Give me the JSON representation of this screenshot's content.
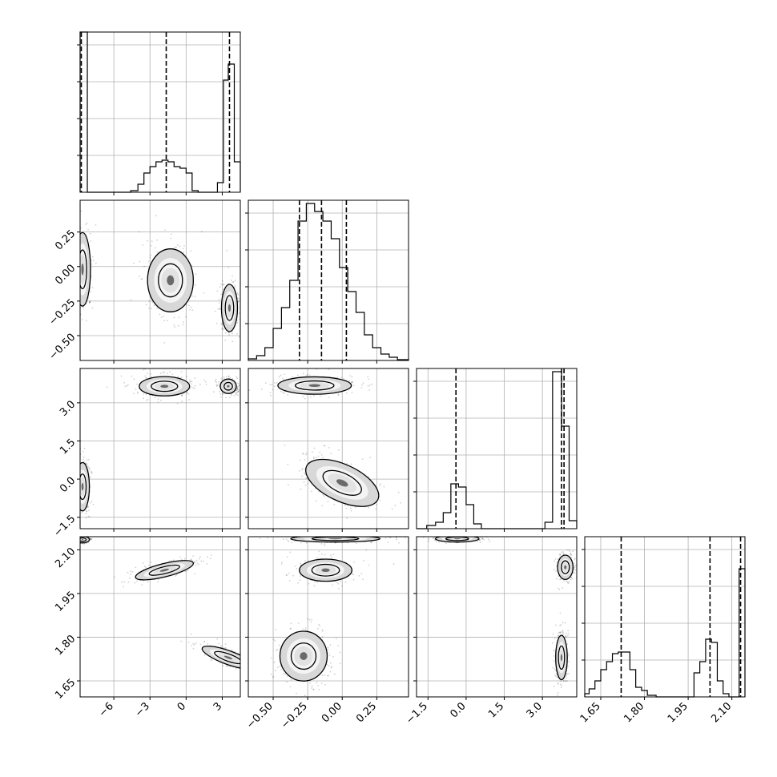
{
  "chart_data": {
    "type": "corner",
    "title": "",
    "parameters": [
      {
        "range": [
          -8.8,
          4.5
        ],
        "ticks": [
          -6,
          -3,
          0,
          3
        ],
        "tick_labels": [
          "−6",
          "−3",
          "0",
          "3"
        ]
      },
      {
        "range": [
          -0.68,
          0.48
        ],
        "ticks": [
          -0.5,
          -0.25,
          0.0,
          0.25
        ],
        "tick_labels": [
          "−0.50",
          "−0.25",
          "0.00",
          "0.25"
        ]
      },
      {
        "range": [
          -1.95,
          4.35
        ],
        "ticks": [
          -1.5,
          0.0,
          1.5,
          3.0
        ],
        "tick_labels": [
          "−1.5",
          "0.0",
          "1.5",
          "3.0"
        ]
      },
      {
        "range": [
          1.595,
          2.145
        ],
        "ticks": [
          1.65,
          1.8,
          1.95,
          2.1
        ],
        "tick_labels": [
          "1.65",
          "1.80",
          "1.95",
          "2.10"
        ]
      }
    ],
    "histograms": [
      {
        "param": 0,
        "bins": [
          [
            -8.8,
            -8.2,
            1.0
          ],
          [
            -8.2,
            -4.6,
            0.0
          ],
          [
            -4.6,
            -4.0,
            0.01
          ],
          [
            -4.0,
            -3.5,
            0.05
          ],
          [
            -3.5,
            -3.0,
            0.12
          ],
          [
            -3.0,
            -2.5,
            0.16
          ],
          [
            -2.5,
            -2.0,
            0.19
          ],
          [
            -2.0,
            -1.5,
            0.2
          ],
          [
            -1.5,
            -1.0,
            0.19
          ],
          [
            -1.0,
            -0.5,
            0.16
          ],
          [
            -0.5,
            0.0,
            0.15
          ],
          [
            0.0,
            0.5,
            0.12
          ],
          [
            0.5,
            1.0,
            0.01
          ],
          [
            1.0,
            2.6,
            0.0
          ],
          [
            2.6,
            3.1,
            0.06
          ],
          [
            3.1,
            3.5,
            0.7
          ],
          [
            3.5,
            4.0,
            0.8
          ],
          [
            4.0,
            4.5,
            0.19
          ]
        ],
        "quantiles": [
          -8.7,
          -1.65,
          3.6
        ]
      },
      {
        "param": 1,
        "bins": [
          [
            -0.68,
            -0.62,
            0.01
          ],
          [
            -0.62,
            -0.56,
            0.03
          ],
          [
            -0.56,
            -0.5,
            0.08
          ],
          [
            -0.5,
            -0.44,
            0.2
          ],
          [
            -0.44,
            -0.38,
            0.33
          ],
          [
            -0.38,
            -0.32,
            0.5
          ],
          [
            -0.32,
            -0.26,
            0.87
          ],
          [
            -0.26,
            -0.2,
            0.98
          ],
          [
            -0.2,
            -0.14,
            0.93
          ],
          [
            -0.14,
            -0.08,
            0.87
          ],
          [
            -0.08,
            -0.02,
            0.76
          ],
          [
            -0.02,
            0.04,
            0.58
          ],
          [
            0.04,
            0.1,
            0.43
          ],
          [
            0.1,
            0.16,
            0.3
          ],
          [
            0.16,
            0.22,
            0.16
          ],
          [
            0.22,
            0.28,
            0.08
          ],
          [
            0.28,
            0.34,
            0.04
          ],
          [
            0.34,
            0.4,
            0.02
          ],
          [
            0.4,
            0.48,
            0.005
          ]
        ],
        "quantiles": [
          -0.31,
          -0.15,
          0.03
        ]
      },
      {
        "param": 2,
        "bins": [
          [
            -1.95,
            -1.55,
            0.0
          ],
          [
            -1.55,
            -1.2,
            0.02
          ],
          [
            -1.2,
            -0.9,
            0.04
          ],
          [
            -0.9,
            -0.6,
            0.1
          ],
          [
            -0.6,
            -0.3,
            0.28
          ],
          [
            -0.3,
            0.0,
            0.26
          ],
          [
            0.0,
            0.3,
            0.15
          ],
          [
            0.3,
            0.6,
            0.03
          ],
          [
            0.6,
            3.1,
            0.0
          ],
          [
            3.1,
            3.4,
            0.04
          ],
          [
            3.4,
            3.75,
            0.98
          ],
          [
            3.75,
            4.05,
            0.64
          ],
          [
            4.05,
            4.35,
            0.05
          ]
        ],
        "quantiles": [
          -0.4,
          3.75,
          3.85
        ]
      },
      {
        "param": 3,
        "bins": [
          [
            1.595,
            1.61,
            0.02
          ],
          [
            1.61,
            1.63,
            0.05
          ],
          [
            1.63,
            1.65,
            0.1
          ],
          [
            1.65,
            1.67,
            0.17
          ],
          [
            1.67,
            1.69,
            0.22
          ],
          [
            1.69,
            1.71,
            0.27
          ],
          [
            1.71,
            1.73,
            0.28
          ],
          [
            1.73,
            1.75,
            0.28
          ],
          [
            1.75,
            1.77,
            0.17
          ],
          [
            1.77,
            1.79,
            0.06
          ],
          [
            1.79,
            1.81,
            0.04
          ],
          [
            1.81,
            1.84,
            0.01
          ],
          [
            1.84,
            1.97,
            0.0
          ],
          [
            1.97,
            1.99,
            0.15
          ],
          [
            1.99,
            2.01,
            0.22
          ],
          [
            2.01,
            2.03,
            0.36
          ],
          [
            2.03,
            2.05,
            0.34
          ],
          [
            2.05,
            2.07,
            0.1
          ],
          [
            2.07,
            2.09,
            0.02
          ],
          [
            2.09,
            2.125,
            0.0
          ],
          [
            2.125,
            2.145,
            0.8
          ]
        ],
        "quantiles": [
          1.72,
          2.025,
          2.13
        ]
      }
    ],
    "panels_2d": [
      {
        "x": 0,
        "y": 1,
        "modes": [
          {
            "cx": -8.6,
            "cy": -0.02,
            "sx": 0.35,
            "sy": 0.14,
            "rot": 0,
            "weight": 1.0
          },
          {
            "cx": -1.3,
            "cy": -0.1,
            "sx": 1.0,
            "sy": 0.12,
            "rot": 0,
            "weight": 0.9
          },
          {
            "cx": 3.6,
            "cy": -0.3,
            "sx": 0.35,
            "sy": 0.09,
            "rot": 0,
            "weight": 0.9
          }
        ]
      },
      {
        "x": 0,
        "y": 2,
        "modes": [
          {
            "cx": -8.6,
            "cy": -0.3,
            "sx": 0.3,
            "sy": 0.5,
            "rot": 0,
            "weight": 0.9
          },
          {
            "cx": -1.8,
            "cy": 3.65,
            "sx": 1.1,
            "sy": 0.2,
            "rot": 0,
            "weight": 0.9
          },
          {
            "cx": 3.5,
            "cy": 3.65,
            "sx": 0.35,
            "sy": 0.15,
            "rot": 0,
            "weight": 0.9
          }
        ]
      },
      {
        "x": 0,
        "y": 3,
        "modes": [
          {
            "cx": -8.6,
            "cy": 2.135,
            "sx": 0.3,
            "sy": 0.006,
            "rot": 0,
            "weight": 0.9
          },
          {
            "cx": -1.8,
            "cy": 2.03,
            "sx": 1.3,
            "sy": 0.012,
            "rot": -14,
            "weight": 0.9
          },
          {
            "cx": 3.5,
            "cy": 1.73,
            "sx": 0.3,
            "sy": 0.05,
            "rot": -70,
            "weight": 0.9
          }
        ]
      },
      {
        "x": 1,
        "y": 2,
        "modes": [
          {
            "cx": -0.2,
            "cy": 3.68,
            "sx": 0.14,
            "sy": 0.18,
            "rot": 0,
            "weight": 0.9
          },
          {
            "cx": 0.0,
            "cy": -0.15,
            "sx": 0.15,
            "sy": 0.38,
            "rot": 25,
            "weight": 0.9
          }
        ]
      },
      {
        "x": 1,
        "y": 3,
        "modes": [
          {
            "cx": -0.05,
            "cy": 2.138,
            "sx": 0.17,
            "sy": 0.006,
            "rot": 0,
            "weight": 0.9
          },
          {
            "cx": -0.12,
            "cy": 2.03,
            "sx": 0.1,
            "sy": 0.02,
            "rot": 0,
            "weight": 0.9
          },
          {
            "cx": -0.28,
            "cy": 1.735,
            "sx": 0.09,
            "sy": 0.045,
            "rot": 0,
            "weight": 0.9
          }
        ]
      },
      {
        "x": 2,
        "y": 3,
        "modes": [
          {
            "cx": -0.35,
            "cy": 2.138,
            "sx": 0.45,
            "sy": 0.006,
            "rot": 0,
            "weight": 0.9
          },
          {
            "cx": 3.9,
            "cy": 2.04,
            "sx": 0.16,
            "sy": 0.022,
            "rot": 0,
            "weight": 0.9
          },
          {
            "cx": 3.75,
            "cy": 1.73,
            "sx": 0.12,
            "sy": 0.04,
            "rot": 0,
            "weight": 0.9
          }
        ]
      }
    ],
    "grid": true,
    "dashed_quantile_lines": true,
    "contour_levels": 2
  }
}
